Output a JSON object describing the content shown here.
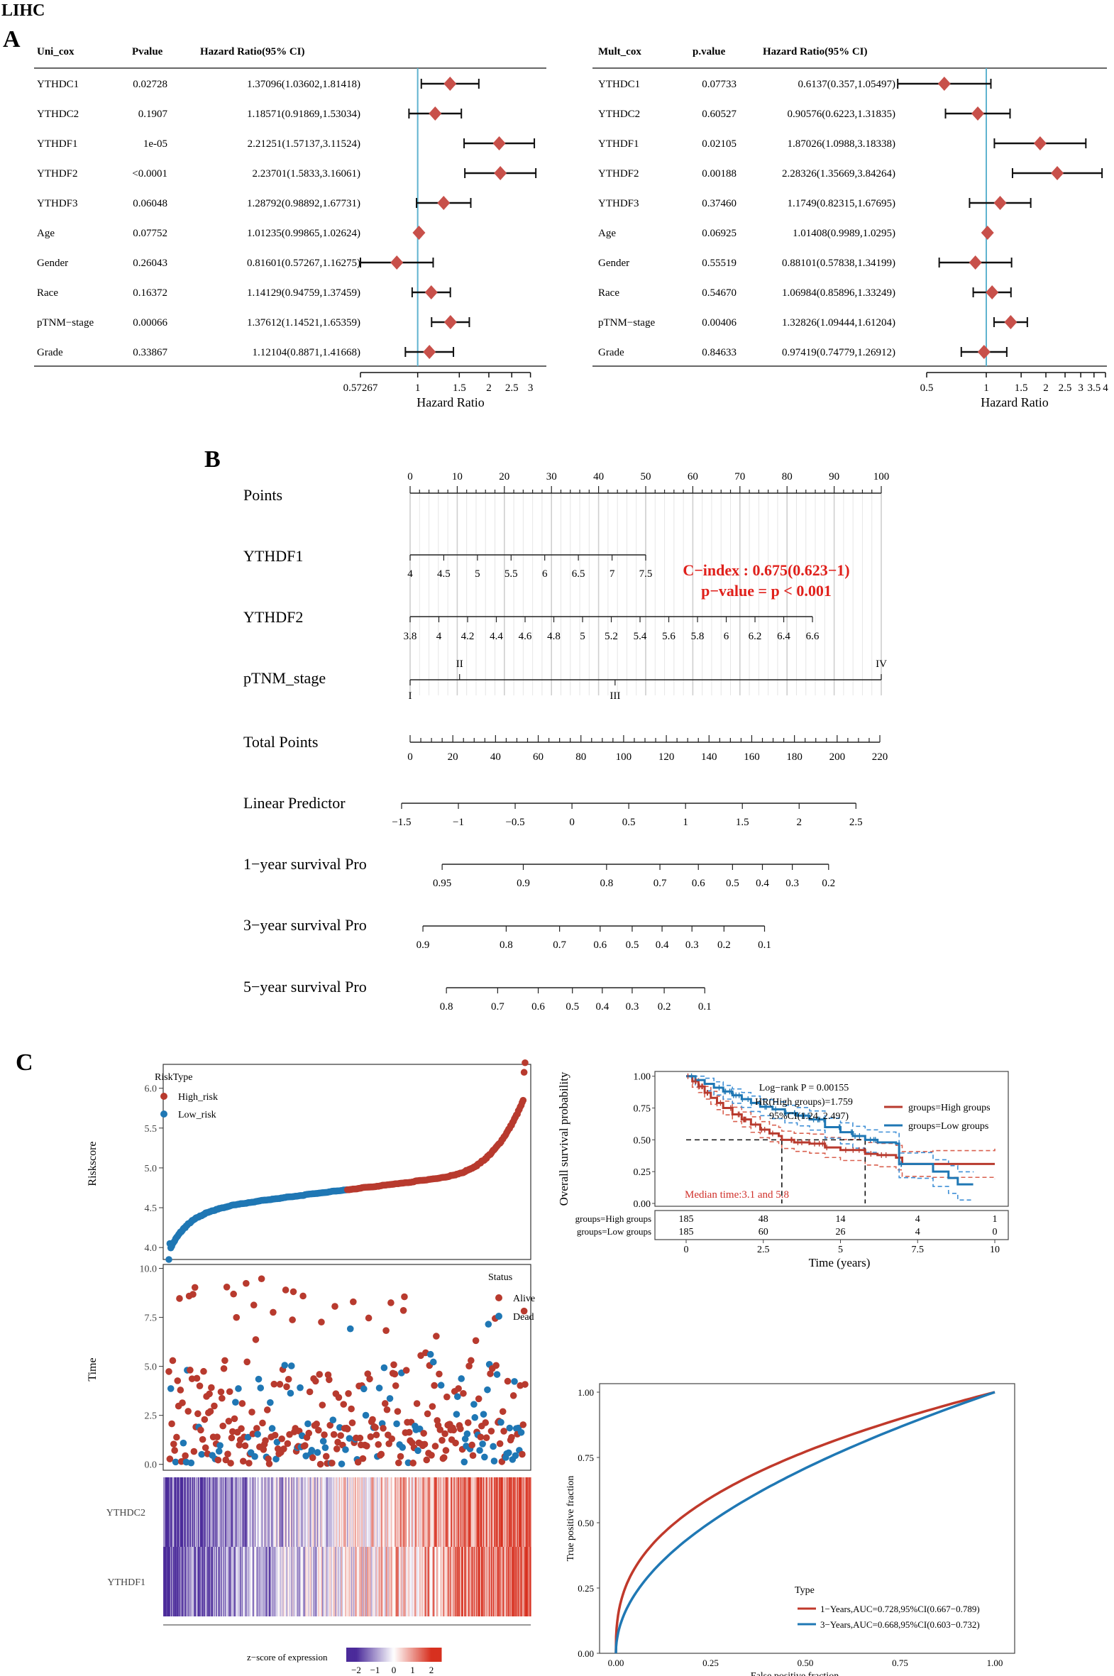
{
  "figure": {
    "title": "LIHC",
    "panel_labels": {
      "a": "A",
      "b": "B",
      "c": "C"
    }
  },
  "colors": {
    "forest_diamond": "#c8504a",
    "reference_line": "#5fb3cf",
    "high_risk": "#b83a2e",
    "low_risk": "#1f77b4",
    "roc_1yr": "#c0392b",
    "roc_3yr": "#1f78b4",
    "km_red_ci": "#d9604f",
    "km_blue_ci": "#3f8fd6",
    "heat_low": "#4b2b9a",
    "heat_high": "#d7301f",
    "cindex_text": "#e0201b"
  },
  "forest_uni": {
    "headers": {
      "name": "Uni_cox",
      "p": "Pvalue",
      "hr": "Hazard Ratio(95% CI)"
    },
    "rows": [
      {
        "name": "YTHDC1",
        "p": "0.02728",
        "hr_text": "1.37096(1.03602,1.81418)",
        "hr": 1.37096,
        "lo": 1.03602,
        "hi": 1.81418
      },
      {
        "name": "YTHDC2",
        "p": "0.1907",
        "hr_text": "1.18571(0.91869,1.53034)",
        "hr": 1.18571,
        "lo": 0.91869,
        "hi": 1.53034
      },
      {
        "name": "YTHDF1",
        "p": "1e-05",
        "hr_text": "2.21251(1.57137,3.11524)",
        "hr": 2.21251,
        "lo": 1.57137,
        "hi": 3.11524
      },
      {
        "name": "YTHDF2",
        "p": "<0.0001",
        "hr_text": "2.23701(1.5833,3.16061)",
        "hr": 2.23701,
        "lo": 1.5833,
        "hi": 3.16061
      },
      {
        "name": "YTHDF3",
        "p": "0.06048",
        "hr_text": "1.28792(0.98892,1.67731)",
        "hr": 1.28792,
        "lo": 0.98892,
        "hi": 1.67731
      },
      {
        "name": "Age",
        "p": "0.07752",
        "hr_text": "1.01235(0.99865,1.02624)",
        "hr": 1.01235,
        "lo": 0.99865,
        "hi": 1.02624
      },
      {
        "name": "Gender",
        "p": "0.26043",
        "hr_text": "0.81601(0.57267,1.16275)",
        "hr": 0.81601,
        "lo": 0.57267,
        "hi": 1.16275
      },
      {
        "name": "Race",
        "p": "0.16372",
        "hr_text": "1.14129(0.94759,1.37459)",
        "hr": 1.14129,
        "lo": 0.94759,
        "hi": 1.37459
      },
      {
        "name": "pTNM−stage",
        "p": "0.00066",
        "hr_text": "1.37612(1.14521,1.65359)",
        "hr": 1.37612,
        "lo": 1.14521,
        "hi": 1.65359
      },
      {
        "name": "Grade",
        "p": "0.33867",
        "hr_text": "1.12104(0.8871,1.41668)",
        "hr": 1.12104,
        "lo": 0.8871,
        "hi": 1.41668
      }
    ],
    "axis_ticks": [
      0.57267,
      1,
      1.5,
      2,
      2.5,
      3
    ],
    "axis_tick_labels": [
      "0.57267",
      "1",
      "1.5",
      "2",
      "2.5",
      "3"
    ],
    "xlabel": "Hazard Ratio",
    "log_scale": true,
    "xlim": [
      0.57267,
      3.16061
    ]
  },
  "forest_mult": {
    "headers": {
      "name": "Mult_cox",
      "p": "p.value",
      "hr": "Hazard Ratio(95% CI)"
    },
    "rows": [
      {
        "name": "YTHDC1",
        "p": "0.07733",
        "hr_text": "0.6137(0.357,1.05497)",
        "hr": 0.6137,
        "lo": 0.357,
        "hi": 1.05497
      },
      {
        "name": "YTHDC2",
        "p": "0.60527",
        "hr_text": "0.90576(0.6223,1.31835)",
        "hr": 0.90576,
        "lo": 0.6223,
        "hi": 1.31835
      },
      {
        "name": "YTHDF1",
        "p": "0.02105",
        "hr_text": "1.87026(1.0988,3.18338)",
        "hr": 1.87026,
        "lo": 1.0988,
        "hi": 3.18338
      },
      {
        "name": "YTHDF2",
        "p": "0.00188",
        "hr_text": "2.28326(1.35669,3.84264)",
        "hr": 2.28326,
        "lo": 1.35669,
        "hi": 3.84264
      },
      {
        "name": "YTHDF3",
        "p": "0.37460",
        "hr_text": "1.1749(0.82315,1.67695)",
        "hr": 1.1749,
        "lo": 0.82315,
        "hi": 1.67695
      },
      {
        "name": "Age",
        "p": "0.06925",
        "hr_text": "1.01408(0.9989,1.0295)",
        "hr": 1.01408,
        "lo": 0.9989,
        "hi": 1.0295
      },
      {
        "name": "Gender",
        "p": "0.55519",
        "hr_text": "0.88101(0.57838,1.34199)",
        "hr": 0.88101,
        "lo": 0.57838,
        "hi": 1.34199
      },
      {
        "name": "Race",
        "p": "0.54670",
        "hr_text": "1.06984(0.85896,1.33249)",
        "hr": 1.06984,
        "lo": 0.85896,
        "hi": 1.33249
      },
      {
        "name": "pTNM−stage",
        "p": "0.00406",
        "hr_text": "1.32826(1.09444,1.61204)",
        "hr": 1.32826,
        "lo": 1.09444,
        "hi": 1.61204
      },
      {
        "name": "Grade",
        "p": "0.84633",
        "hr_text": "0.97419(0.74779,1.26912)",
        "hr": 0.97419,
        "lo": 0.74779,
        "hi": 1.26912
      }
    ],
    "axis_ticks": [
      0.5,
      1,
      1.5,
      2,
      2.5,
      3,
      3.5,
      4
    ],
    "axis_tick_labels": [
      "0.5",
      "1",
      "1.5",
      "2",
      "2.5",
      "3",
      "3.5",
      "4"
    ],
    "xlabel": "Hazard Ratio",
    "xlim": [
      0.357,
      4
    ]
  },
  "nomogram": {
    "cindex_line1": "C−index : 0.675(0.623−1)",
    "cindex_line2": "p−value = p < 0.001",
    "rows": [
      {
        "label": "Points",
        "ticks": [
          "0",
          "10",
          "20",
          "30",
          "40",
          "50",
          "60",
          "70",
          "80",
          "90",
          "100"
        ],
        "range": [
          0,
          100
        ],
        "values": [
          0,
          10,
          20,
          30,
          40,
          50,
          60,
          70,
          80,
          90,
          100
        ],
        "labels_above": true,
        "minor": 5
      },
      {
        "label": "YTHDF1",
        "ticks": [
          "4",
          "4.5",
          "5",
          "5.5",
          "6",
          "6.5",
          "7",
          "7.5"
        ],
        "values": [
          4,
          4.5,
          5,
          5.5,
          6,
          6.5,
          7,
          7.5
        ],
        "points": [
          0,
          7.14,
          14.29,
          21.43,
          28.57,
          35.71,
          42.86,
          50
        ],
        "labels_above": false
      },
      {
        "label": "YTHDF2",
        "ticks": [
          "3.8",
          "4",
          "4.2",
          "4.4",
          "4.6",
          "4.8",
          "5",
          "5.2",
          "5.4",
          "5.6",
          "5.8",
          "6",
          "6.2",
          "6.4",
          "6.6"
        ],
        "points": [
          0,
          6.1,
          12.2,
          18.3,
          24.4,
          30.5,
          36.6,
          42.7,
          48.8,
          54.9,
          61.0,
          67.1,
          73.2,
          79.3,
          85.4
        ],
        "labels_above": false
      },
      {
        "label": "pTNM_stage",
        "ticks_above": [
          "II",
          "IV"
        ],
        "points_above": [
          10.5,
          100
        ],
        "ticks_below": [
          "I",
          "III"
        ],
        "points_below": [
          0,
          43.5
        ]
      },
      {
        "label": "Total Points",
        "ticks": [
          "0",
          "20",
          "40",
          "60",
          "80",
          "100",
          "120",
          "140",
          "160",
          "180",
          "200",
          "220"
        ],
        "values": [
          0,
          20,
          40,
          60,
          80,
          100,
          120,
          140,
          160,
          180,
          200,
          220
        ],
        "range": [
          0,
          220
        ],
        "minor": 4
      },
      {
        "label": "Linear Predictor",
        "ticks": [
          "−1.5",
          "−1",
          "−0.5",
          "0",
          "0.5",
          "1",
          "1.5",
          "2",
          "2.5"
        ],
        "values": [
          -1.5,
          -1,
          -0.5,
          0,
          0.5,
          1,
          1.5,
          2,
          2.5
        ],
        "total_points": [
          -4,
          22.6,
          49.2,
          75.8,
          102.4,
          129,
          155.6,
          182.2,
          208.8
        ]
      },
      {
        "label": "1−year survival Pro",
        "ticks": [
          "0.95",
          "0.9",
          "0.8",
          "0.7",
          "0.6",
          "0.5",
          "0.4",
          "0.3",
          "0.2"
        ],
        "total_points": [
          15,
          53,
          92,
          117,
          135,
          151,
          165,
          179,
          196
        ]
      },
      {
        "label": "3−year survival Pro",
        "ticks": [
          "0.9",
          "0.8",
          "0.7",
          "0.6",
          "0.5",
          "0.4",
          "0.3",
          "0.2",
          "0.1"
        ],
        "total_points": [
          6,
          45,
          70,
          89,
          104,
          118,
          132,
          147,
          166
        ]
      },
      {
        "label": "5−year survival Pro",
        "ticks": [
          "0.8",
          "0.7",
          "0.6",
          "0.5",
          "0.4",
          "0.3",
          "0.2",
          "0.1"
        ],
        "total_points": [
          17,
          41,
          60,
          76,
          90,
          104,
          119,
          138
        ]
      }
    ]
  },
  "risk_plot": {
    "legend_title": "RiskType",
    "legend_high": "High_risk",
    "legend_low": "Low_risk",
    "ylabel": "Riskscore",
    "y_ticks": [
      "4.0",
      "4.5",
      "5.0",
      "5.5",
      "6.0"
    ],
    "y_values": [
      4.0,
      4.5,
      5.0,
      5.5,
      6.0
    ],
    "ylim": [
      3.85,
      6.3
    ],
    "n_low": 185,
    "n_high": 185
  },
  "status_plot": {
    "legend_title": "Status",
    "legend_alive": "Alive",
    "legend_dead": "Dead",
    "ylabel": "Time",
    "y_ticks": [
      "0.0",
      "2.5",
      "5.0",
      "7.5",
      "10.0"
    ],
    "y_values": [
      0,
      2.5,
      5,
      7.5,
      10
    ],
    "ylim": [
      -0.3,
      10.2
    ]
  },
  "heatmap": {
    "rows": [
      "YTHDC2",
      "YTHDF1"
    ],
    "legend_title": "z−score of expression",
    "legend_ticks": [
      "−2",
      "−1",
      "0",
      "1",
      "2"
    ],
    "legend_values": [
      -2,
      -1,
      0,
      1,
      2
    ]
  },
  "km_plot": {
    "title": "Log−rank P = 0.00155",
    "hr_line": "HR(High groups)=1.759",
    "ci_line": "95%CI(1.24, 2.497)",
    "legend_high": "groups=High groups",
    "legend_low": "groups=Low groups",
    "ylabel": "Overall survival probability",
    "xlabel": "Time (years)",
    "median_text": "Median time:3.1 and 5.8",
    "y_ticks": [
      "0.00",
      "0.25",
      "0.50",
      "0.75",
      "1.00"
    ],
    "y_values": [
      0,
      0.25,
      0.5,
      0.75,
      1.0
    ],
    "x_ticks": [
      "0",
      "2.5",
      "5",
      "7.5",
      "10"
    ],
    "x_values": [
      0,
      2.5,
      5,
      7.5,
      10
    ],
    "xlim": [
      0,
      10
    ],
    "ylim": [
      0,
      1
    ],
    "medians": [
      3.1,
      5.8
    ],
    "risk_table": {
      "rows": [
        {
          "label": "groups=High groups",
          "values": [
            "185",
            "48",
            "14",
            "4",
            "1"
          ]
        },
        {
          "label": "groups=Low groups",
          "values": [
            "185",
            "60",
            "26",
            "4",
            "0"
          ]
        }
      ],
      "times": [
        0,
        2.5,
        5,
        7.5,
        10
      ]
    },
    "high_curve": [
      [
        0,
        1
      ],
      [
        0.2,
        0.96
      ],
      [
        0.4,
        0.92
      ],
      [
        0.6,
        0.87
      ],
      [
        0.8,
        0.83
      ],
      [
        1,
        0.79
      ],
      [
        1.2,
        0.75
      ],
      [
        1.5,
        0.7
      ],
      [
        1.8,
        0.66
      ],
      [
        2.1,
        0.62
      ],
      [
        2.4,
        0.58
      ],
      [
        2.7,
        0.55
      ],
      [
        3.0,
        0.53
      ],
      [
        3.1,
        0.5
      ],
      [
        3.5,
        0.48
      ],
      [
        4.0,
        0.47
      ],
      [
        4.5,
        0.44
      ],
      [
        5.0,
        0.42
      ],
      [
        5.8,
        0.39
      ],
      [
        6.2,
        0.38
      ],
      [
        6.8,
        0.36
      ],
      [
        7.0,
        0.31
      ],
      [
        8.0,
        0.31
      ],
      [
        10,
        0.31
      ]
    ],
    "low_curve": [
      [
        0,
        1
      ],
      [
        0.3,
        0.97
      ],
      [
        0.6,
        0.94
      ],
      [
        0.9,
        0.91
      ],
      [
        1.2,
        0.88
      ],
      [
        1.5,
        0.85
      ],
      [
        1.8,
        0.82
      ],
      [
        2.1,
        0.79
      ],
      [
        2.4,
        0.76
      ],
      [
        2.8,
        0.74
      ],
      [
        3.2,
        0.71
      ],
      [
        3.6,
        0.69
      ],
      [
        4.0,
        0.66
      ],
      [
        4.5,
        0.6
      ],
      [
        5.0,
        0.56
      ],
      [
        5.4,
        0.53
      ],
      [
        5.8,
        0.5
      ],
      [
        6.2,
        0.48
      ],
      [
        6.8,
        0.47
      ],
      [
        6.9,
        0.31
      ],
      [
        7.5,
        0.31
      ],
      [
        8.0,
        0.25
      ],
      [
        8.5,
        0.2
      ],
      [
        8.8,
        0.15
      ],
      [
        9.3,
        0.15
      ]
    ]
  },
  "roc_plot": {
    "xlabel": "False positive fraction",
    "ylabel": "True positive fraction",
    "x_ticks": [
      "0.00",
      "0.25",
      "0.50",
      "0.75",
      "1.00"
    ],
    "y_ticks": [
      "0.00",
      "0.25",
      "0.50",
      "0.75",
      "1.00"
    ],
    "tick_values": [
      0,
      0.25,
      0.5,
      0.75,
      1.0
    ],
    "legend_title": "Type",
    "series": [
      {
        "name": "1−Years,AUC=0.728,95%CI(0.667−0.789)",
        "auc": 0.728
      },
      {
        "name": "3−Years,AUC=0.668,95%CI(0.603−0.732)",
        "auc": 0.668
      }
    ]
  },
  "chart_data": [
    {
      "type": "forest",
      "panel": "A-left",
      "categories": [
        "YTHDC1",
        "YTHDC2",
        "YTHDF1",
        "YTHDF2",
        "YTHDF3",
        "Age",
        "Gender",
        "Race",
        "pTNM−stage",
        "Grade"
      ],
      "hr": [
        1.37096,
        1.18571,
        2.21251,
        2.23701,
        1.28792,
        1.01235,
        0.81601,
        1.14129,
        1.37612,
        1.12104
      ],
      "ci_low": [
        1.03602,
        0.91869,
        1.57137,
        1.5833,
        0.98892,
        0.99865,
        0.57267,
        0.94759,
        1.14521,
        0.8871
      ],
      "ci_high": [
        1.81418,
        1.53034,
        3.11524,
        3.16061,
        1.67731,
        1.02624,
        1.16275,
        1.37459,
        1.65359,
        1.41668
      ],
      "xlabel": "Hazard Ratio"
    },
    {
      "type": "forest",
      "panel": "A-right",
      "categories": [
        "YTHDC1",
        "YTHDC2",
        "YTHDF1",
        "YTHDF2",
        "YTHDF3",
        "Age",
        "Gender",
        "Race",
        "pTNM−stage",
        "Grade"
      ],
      "hr": [
        0.6137,
        0.90576,
        1.87026,
        2.28326,
        1.1749,
        1.01408,
        0.88101,
        1.06984,
        1.32826,
        0.97419
      ],
      "ci_low": [
        0.357,
        0.6223,
        1.0988,
        1.35669,
        0.82315,
        0.9989,
        0.57838,
        0.85896,
        1.09444,
        0.74779
      ],
      "ci_high": [
        1.05497,
        1.31835,
        3.18338,
        3.84264,
        1.67695,
        1.0295,
        1.34199,
        1.33249,
        1.61204,
        1.26912
      ],
      "xlabel": "Hazard Ratio"
    },
    {
      "type": "line",
      "panel": "C-km",
      "series": [
        {
          "name": "groups=High groups"
        },
        {
          "name": "groups=Low groups"
        }
      ],
      "xlabel": "Time (years)",
      "ylabel": "Overall survival probability",
      "xlim": [
        0,
        10
      ],
      "ylim": [
        0,
        1
      ]
    },
    {
      "type": "line",
      "panel": "C-roc",
      "series": [
        {
          "name": "1−Years,AUC=0.728,95%CI(0.667−0.789)"
        },
        {
          "name": "3−Years,AUC=0.668,95%CI(0.603−0.732)"
        }
      ],
      "xlabel": "False positive fraction",
      "ylabel": "True positive fraction",
      "xlim": [
        0,
        1
      ],
      "ylim": [
        0,
        1
      ]
    }
  ]
}
